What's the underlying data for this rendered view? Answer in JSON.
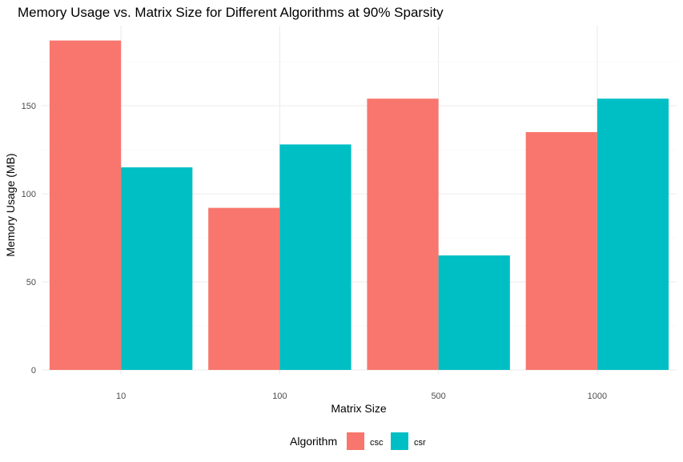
{
  "chart_data": {
    "type": "bar",
    "title": "Memory Usage vs. Matrix Size for Different Algorithms at 90% Sparsity",
    "xlabel": "Matrix Size",
    "ylabel": "Memory Usage (MB)",
    "categories": [
      "10",
      "100",
      "500",
      "1000"
    ],
    "series": [
      {
        "name": "csc",
        "color": "#F8766D",
        "values": [
          187,
          92,
          154,
          135
        ]
      },
      {
        "name": "csr",
        "color": "#00BFC4",
        "values": [
          115,
          128,
          65,
          154
        ]
      }
    ],
    "ylim": [
      0,
      195
    ],
    "yticks": [
      0,
      50,
      100,
      150
    ],
    "grid": true,
    "legend": {
      "title": "Algorithm",
      "position": "bottom"
    }
  }
}
